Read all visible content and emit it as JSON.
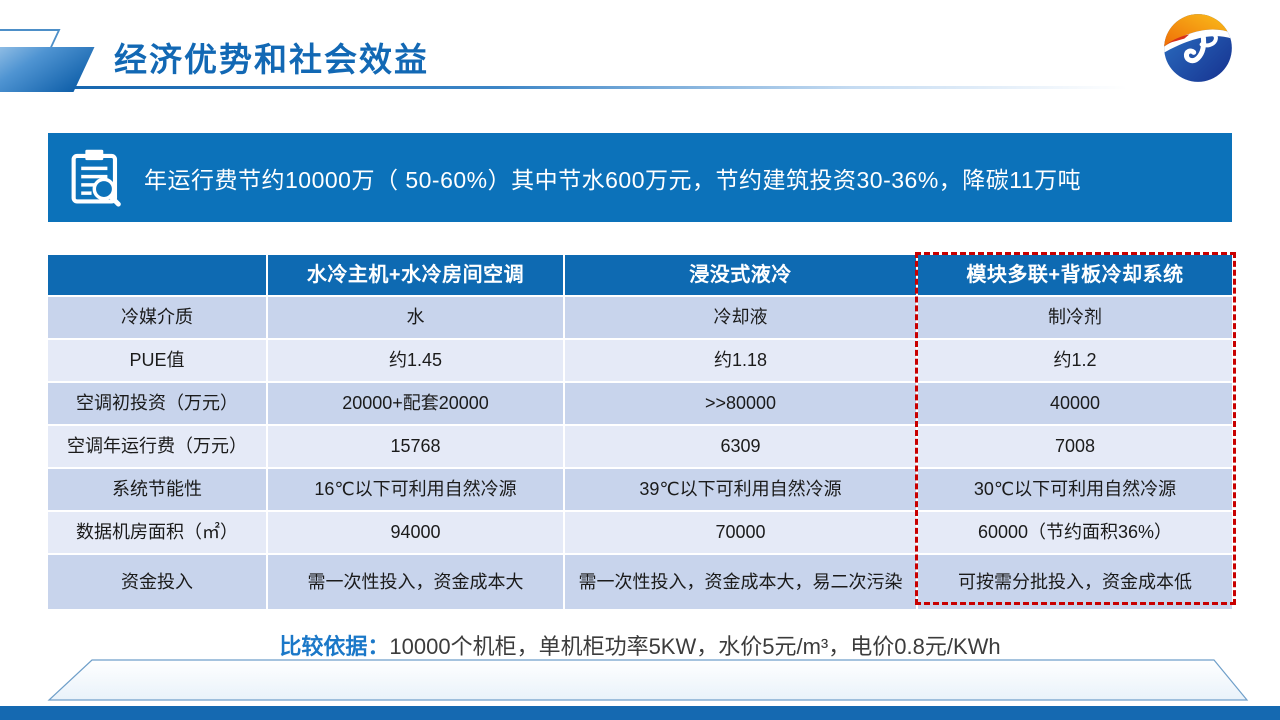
{
  "slide": {
    "title": "经济优势和社会效益"
  },
  "banner": {
    "icon": "clipboard-magnifier-icon",
    "text": "年运行费节约10000万（ 50-60%）其中节水600万元，节约建筑投资30-36%，降碳11万吨"
  },
  "table": {
    "columns": [
      "",
      "水冷主机+水冷房间空调",
      "浸没式液冷",
      "模块多联+背板冷却系统"
    ],
    "highlighted_column": "模块多联+背板冷却系统",
    "rows": [
      {
        "label": "冷媒介质",
        "values": [
          "水",
          "冷却液",
          "制冷剂"
        ]
      },
      {
        "label": "PUE值",
        "values": [
          "约1.45",
          "约1.18",
          "约1.2"
        ]
      },
      {
        "label": "空调初投资（万元）",
        "values": [
          "20000+配套20000",
          ">>80000",
          "40000"
        ]
      },
      {
        "label": "空调年运行费（万元）",
        "values": [
          "15768",
          "6309",
          "7008"
        ]
      },
      {
        "label": "系统节能性",
        "values": [
          "16℃以下可利用自然冷源",
          "39℃以下可利用自然冷源",
          "30℃以下可利用自然冷源"
        ]
      },
      {
        "label": "数据机房面积（㎡）",
        "values": [
          "94000",
          "70000",
          "60000（节约面积36%）"
        ]
      },
      {
        "label": "资金投入",
        "values": [
          "需一次性投入，资金成本大",
          "需一次性投入，资金成本大，易二次污染",
          "可按需分批投入，资金成本低"
        ]
      }
    ]
  },
  "footnote": {
    "label": "比较依据：",
    "text": "10000个机柜，单机柜功率5KW，水价5元/m³，电价0.8元/KWh"
  },
  "icons": {
    "banner_icon": "clipboard-magnifier-icon",
    "logo_icon": "company-logo"
  },
  "colors": {
    "accent_blue": "#1268b4",
    "banner_blue": "#0c72ba",
    "header_blue": "#0e6ab2",
    "row_dark": "#c8d4ec",
    "row_light": "#e5eaf7",
    "highlight_red": "#c80000",
    "text_dark": "#1b1b1b",
    "bottom_bar_blue": "#1569b1"
  }
}
